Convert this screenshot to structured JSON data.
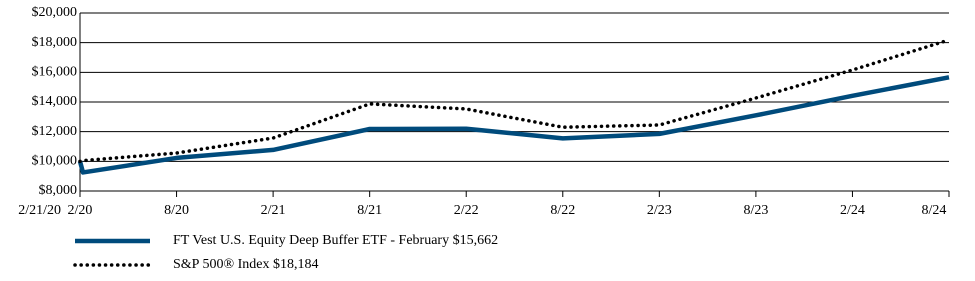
{
  "chart_data": {
    "type": "line",
    "categories": [
      "2/21/20",
      "2/20",
      "8/20",
      "2/21",
      "8/21",
      "2/22",
      "8/22",
      "2/23",
      "8/23",
      "2/24",
      "8/24"
    ],
    "series": [
      {
        "name": "FT Vest U.S. Equity Deep Buffer ETF - February $15,662",
        "color": "#004b7c",
        "style": "solid",
        "values": [
          10000,
          9250,
          10230,
          10770,
          12180,
          12200,
          11550,
          11850,
          13100,
          14420,
          15662
        ]
      },
      {
        "name": "S&P 500® Index $18,184",
        "color": "#000000",
        "style": "dotted",
        "values": [
          10000,
          10050,
          10560,
          11570,
          13870,
          13530,
          12300,
          12450,
          14270,
          16160,
          18184
        ]
      }
    ],
    "ylim": [
      8000,
      20000
    ],
    "yticks": [
      {
        "value": 8000,
        "label": "$8,000"
      },
      {
        "value": 10000,
        "label": "$10,000"
      },
      {
        "value": 12000,
        "label": "$12,000"
      },
      {
        "value": 14000,
        "label": "$14,000"
      },
      {
        "value": 16000,
        "label": "$16,000"
      },
      {
        "value": 18000,
        "label": "$18,000"
      },
      {
        "value": 20000,
        "label": "$20,000"
      }
    ],
    "grid": true
  }
}
